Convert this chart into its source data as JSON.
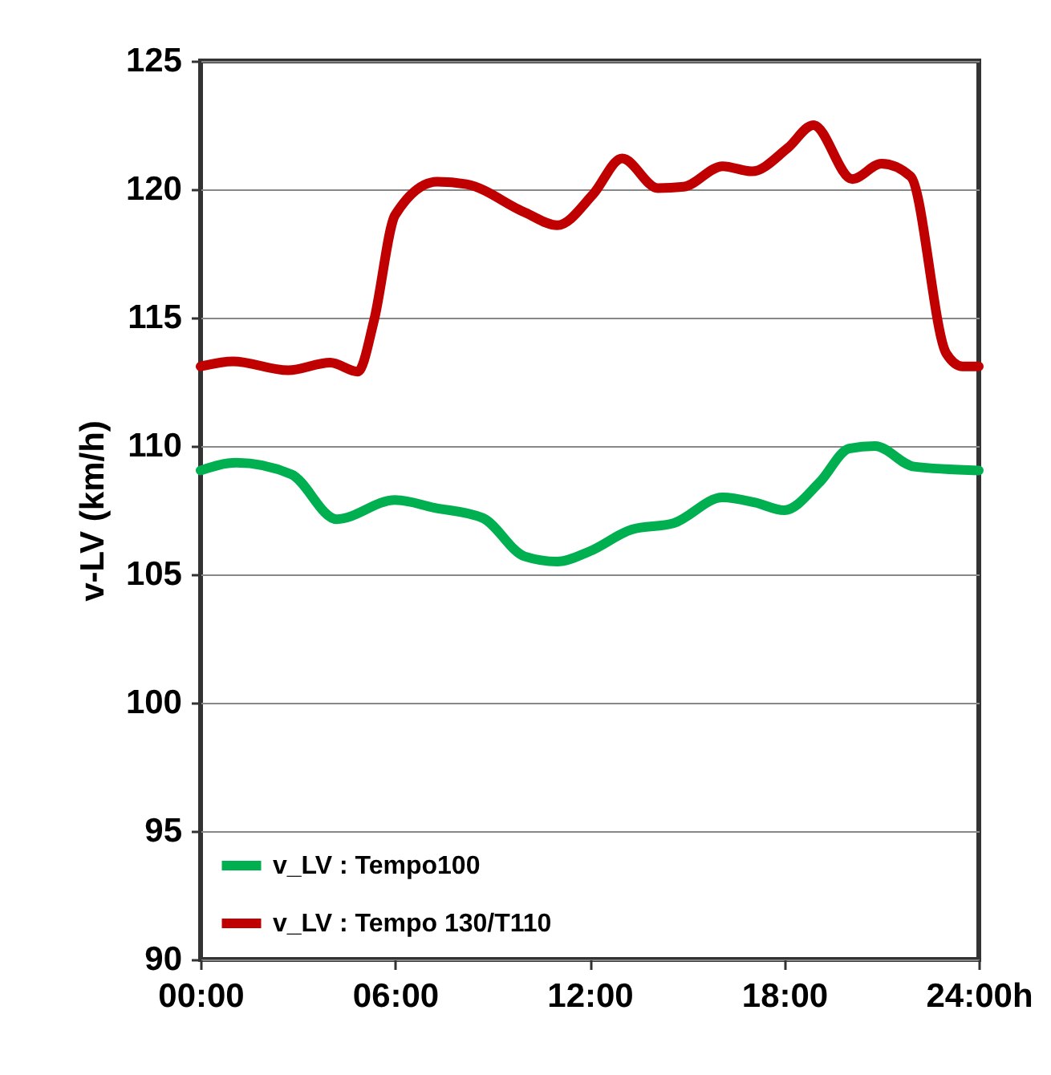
{
  "chart_data": {
    "type": "line",
    "ylabel": "v-LV (km/h)",
    "xlim": [
      0,
      24
    ],
    "xticks": [
      {
        "value": 0,
        "label": "00:00"
      },
      {
        "value": 6,
        "label": "06:00"
      },
      {
        "value": 12,
        "label": "12:00"
      },
      {
        "value": 18,
        "label": "18:00"
      },
      {
        "value": 24,
        "label": "24:00h"
      }
    ],
    "ylim": [
      90,
      125
    ],
    "yticks": [
      90,
      95,
      100,
      105,
      110,
      115,
      120,
      125
    ],
    "grid": "y",
    "legend": "bottom left",
    "marker": "none",
    "line_style": "solid",
    "series": [
      {
        "name": "v_LV : Tempo100",
        "color": "#00b050",
        "x": [
          0,
          1.1,
          2.8,
          4.2,
          6,
          7.2,
          8.7,
          10,
          11,
          12,
          13.3,
          14.6,
          16.1,
          17.1,
          18,
          19.1,
          20,
          20.8,
          22,
          24
        ],
        "values": [
          109.05,
          109.35,
          108.9,
          107.15,
          107.9,
          107.6,
          107.2,
          105.7,
          105.5,
          105.9,
          106.75,
          107.0,
          108.0,
          107.8,
          107.5,
          108.6,
          109.9,
          110.0,
          109.2,
          109.05
        ]
      },
      {
        "name": "v_LV  : Tempo 130/T110",
        "color": "#c00000",
        "x": [
          0,
          1,
          2.7,
          4,
          4.85,
          5.35,
          6,
          7.3,
          8.2,
          10,
          11,
          12.1,
          13,
          14.1,
          14.9,
          16.1,
          17,
          18.1,
          18.9,
          20.1,
          21,
          21.9,
          23,
          23.5,
          24
        ],
        "values": [
          113.1,
          113.3,
          112.95,
          113.25,
          112.9,
          114.9,
          119.0,
          120.3,
          120.2,
          119.1,
          118.6,
          119.8,
          121.2,
          120.05,
          120.1,
          120.9,
          120.7,
          121.6,
          122.5,
          120.4,
          121.0,
          120.5,
          113.6,
          113.1,
          113.1
        ]
      }
    ]
  }
}
